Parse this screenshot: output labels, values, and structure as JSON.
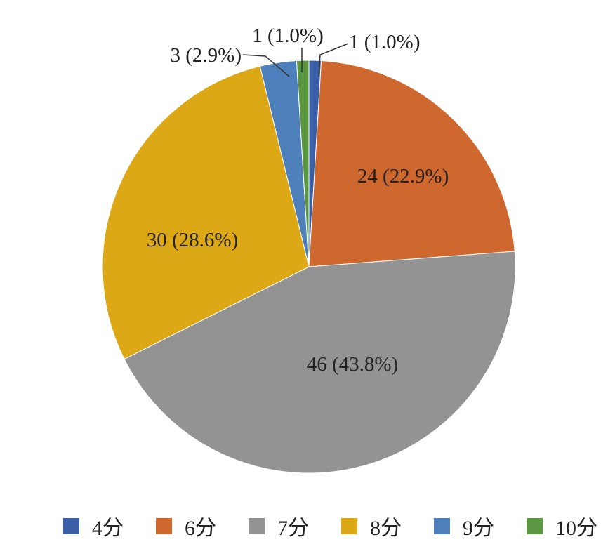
{
  "chart_data": {
    "type": "pie",
    "title": "",
    "start_angle_deg": 90,
    "direction": "clockwise",
    "legend_position": "bottom",
    "slices": [
      {
        "label": "4分",
        "value": 1,
        "percent": 1.0,
        "data_label": "1 (1.0%)",
        "color": "#3b5fa6"
      },
      {
        "label": "6分",
        "value": 24,
        "percent": 22.9,
        "data_label": "24 (22.9%)",
        "color": "#cf682e"
      },
      {
        "label": "7分",
        "value": 46,
        "percent": 43.8,
        "data_label": "46 (43.8%)",
        "color": "#939393"
      },
      {
        "label": "8分",
        "value": 30,
        "percent": 28.6,
        "data_label": "30 (28.6%)",
        "color": "#dca815"
      },
      {
        "label": "9分",
        "value": 3,
        "percent": 2.9,
        "data_label": "3 (2.9%)",
        "color": "#4d80bb"
      },
      {
        "label": "10分",
        "value": 1,
        "percent": 1.0,
        "data_label": "1 (1.0%)",
        "color": "#5b9641"
      }
    ]
  }
}
